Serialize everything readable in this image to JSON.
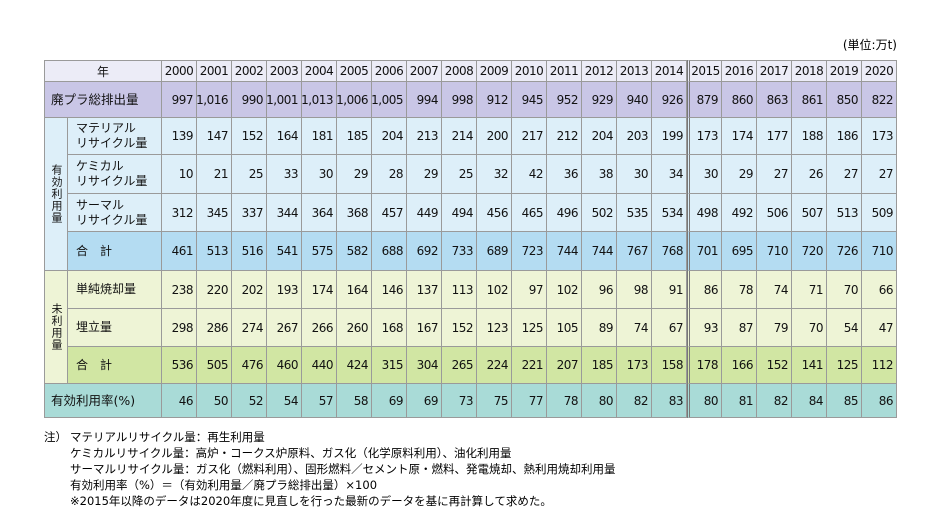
{
  "unit": "(単位:万t)",
  "table": {
    "header": {
      "label": "年",
      "years": [
        2000,
        2001,
        2002,
        2003,
        2004,
        2005,
        2006,
        2007,
        2008,
        2009,
        2010,
        2011,
        2012,
        2013,
        2014,
        2015,
        2016,
        2017,
        2018,
        2019,
        2020
      ]
    },
    "rows": [
      {
        "label": "廃プラ総排出量",
        "values": [
          997,
          "1,016",
          990,
          "1,001",
          "1,013",
          "1,006",
          "1,005",
          994,
          998,
          912,
          945,
          952,
          929,
          940,
          926,
          879,
          860,
          863,
          861,
          850,
          822
        ]
      },
      {
        "group": "有効利用量",
        "rows": [
          {
            "lines": [
              "マテリアル",
              "リサイクル量"
            ],
            "values": [
              139,
              147,
              152,
              164,
              181,
              185,
              204,
              213,
              214,
              200,
              217,
              212,
              204,
              203,
              199,
              173,
              174,
              177,
              188,
              186,
              173
            ]
          },
          {
            "lines": [
              "ケミカル",
              "リサイクル量"
            ],
            "values": [
              10,
              21,
              25,
              33,
              30,
              29,
              28,
              29,
              25,
              32,
              42,
              36,
              38,
              30,
              34,
              30,
              29,
              27,
              26,
              27,
              27
            ]
          },
          {
            "lines": [
              "サーマル",
              "リサイクル量"
            ],
            "values": [
              312,
              345,
              337,
              344,
              364,
              368,
              457,
              449,
              494,
              456,
              465,
              496,
              502,
              535,
              534,
              498,
              492,
              506,
              507,
              513,
              509
            ]
          },
          {
            "lines": [
              "合　計"
            ],
            "values": [
              461,
              513,
              516,
              541,
              575,
              582,
              688,
              692,
              733,
              689,
              723,
              744,
              744,
              767,
              768,
              701,
              695,
              710,
              720,
              726,
              710
            ]
          }
        ]
      },
      {
        "group": "未利用量",
        "rows": [
          {
            "lines": [
              "単純焼却量"
            ],
            "values": [
              238,
              220,
              202,
              193,
              174,
              164,
              146,
              137,
              113,
              102,
              97,
              102,
              96,
              98,
              91,
              86,
              78,
              74,
              71,
              70,
              66
            ]
          },
          {
            "lines": [
              "埋立量"
            ],
            "values": [
              298,
              286,
              274,
              267,
              266,
              260,
              168,
              167,
              152,
              123,
              125,
              105,
              89,
              74,
              67,
              93,
              87,
              79,
              70,
              54,
              47
            ]
          },
          {
            "lines": [
              "合　計"
            ],
            "values": [
              536,
              505,
              476,
              460,
              440,
              424,
              315,
              304,
              265,
              224,
              221,
              207,
              185,
              173,
              158,
              178,
              166,
              152,
              141,
              125,
              112
            ]
          }
        ]
      },
      {
        "label": "有効利用率(%)",
        "values": [
          46,
          50,
          52,
          54,
          57,
          58,
          69,
          69,
          73,
          75,
          77,
          78,
          80,
          82,
          83,
          80,
          81,
          82,
          84,
          85,
          86
        ]
      }
    ]
  },
  "notes": {
    "prefix": "注）",
    "lines": [
      "マテリアルリサイクル量：再生利用量",
      "ケミカルリサイクル量：高炉・コークス炉原料、ガス化（化学原料利用）、油化利用量",
      "サーマルリサイクル量：ガス化（燃料利用）、固形燃料／セメント原・燃料、発電焼却、熱利用焼却利用量",
      "有効利用率（%）＝（有効利用量／廃プラ総排出量）×100",
      "※2015年以降のデータは2020年度に見直しを行った最新のデータを基に再計算して求めた。"
    ]
  }
}
